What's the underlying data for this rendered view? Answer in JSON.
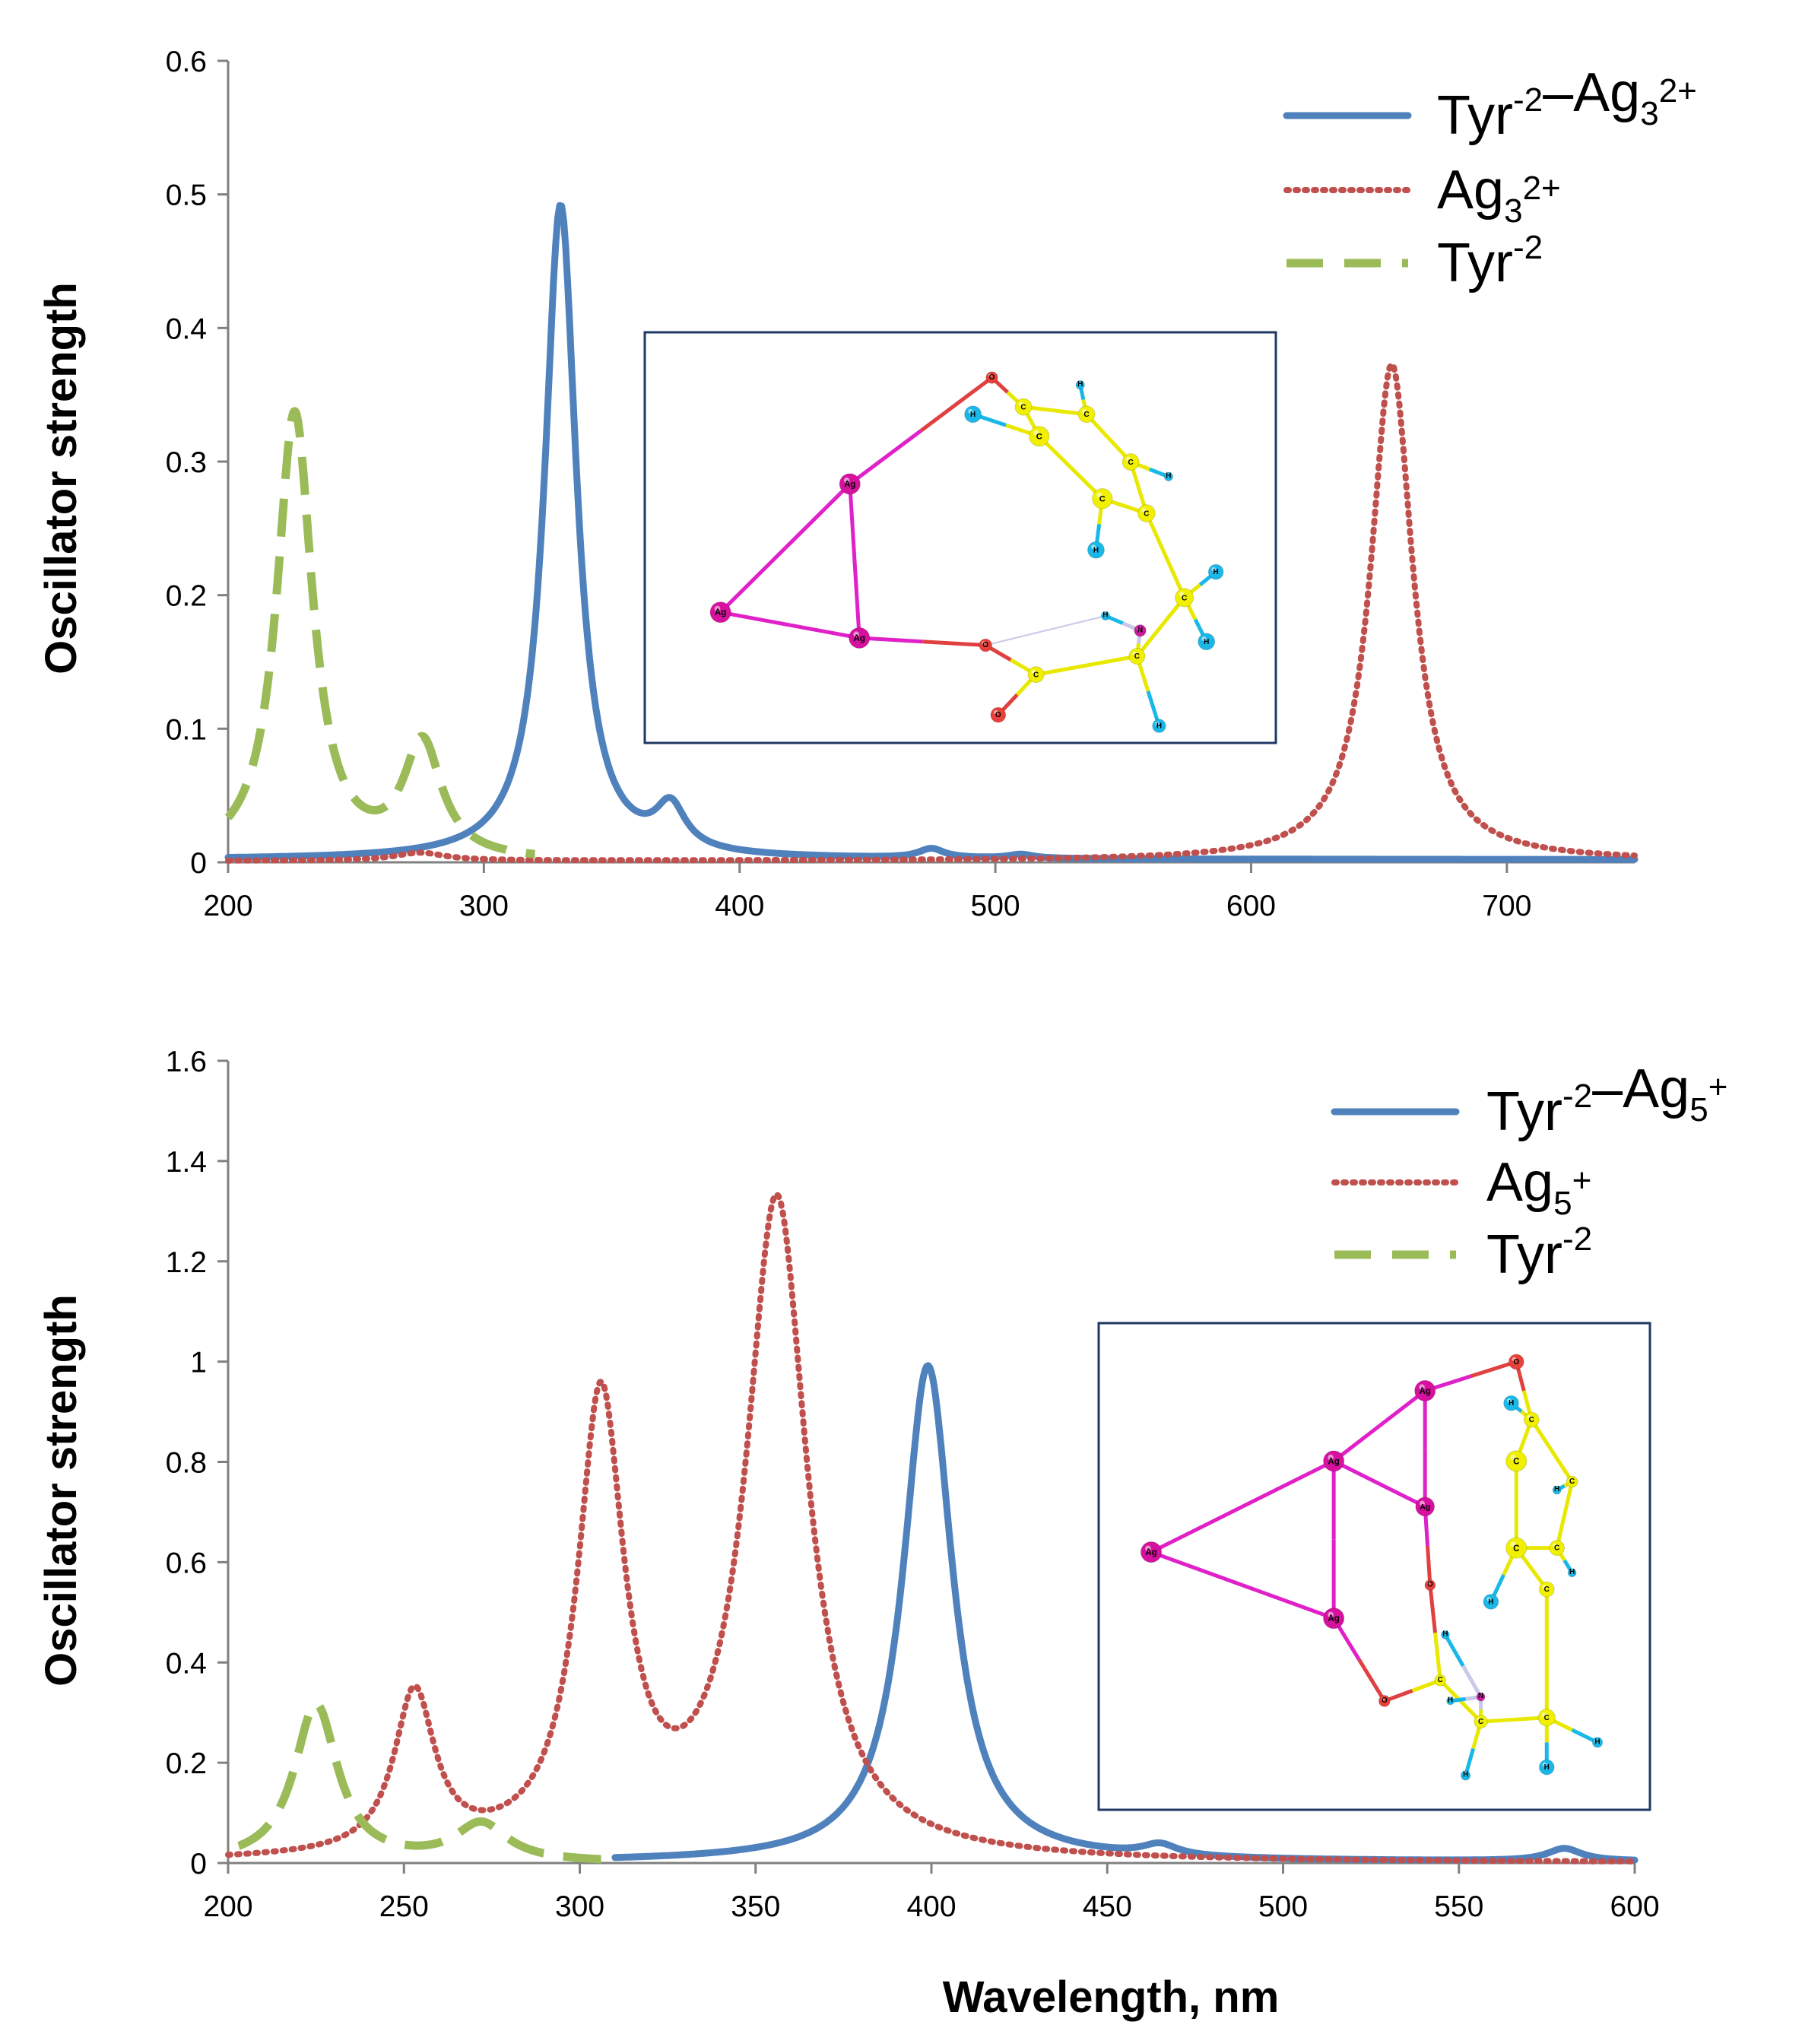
{
  "colors": {
    "complex": "#4f81bd",
    "cluster": "#c0504d",
    "tyrosine": "#9bbb59",
    "axis": "#808080",
    "inset_border": "#1f3864",
    "atom_C": "#f0f000",
    "atom_H": "#1ab8e8",
    "atom_O": "#e8403a",
    "atom_N": "#cc1aa0",
    "atom_Ag": "#d6119e",
    "bond_Ag": "#e020c8",
    "bond_C": "#e8e800",
    "bond_O": "#e04040",
    "bond_N": "#c8c8e8"
  },
  "shared": {
    "ylabel": "Oscillator strength",
    "xlabel": "Wavelength, nm"
  },
  "chart_data": [
    {
      "type": "line",
      "title": "",
      "xlabel": "",
      "ylabel": "Oscillator strength",
      "xlim": [
        200,
        750
      ],
      "ylim": [
        0,
        0.6
      ],
      "xticks": [
        "200",
        "300",
        "400",
        "500",
        "600",
        "700"
      ],
      "yticks": [
        "0",
        "0.1",
        "0.2",
        "0.3",
        "0.4",
        "0.5",
        "0.6"
      ],
      "grid": false,
      "legend_position": "top-right",
      "series": [
        {
          "name": "Tyr-2–Ag3 2+",
          "legend": {
            "base": "Tyr",
            "parts": [
              [
                "sup",
                "-2"
              ],
              [
                "text",
                "–Ag"
              ],
              [
                "sub",
                "3"
              ],
              [
                "sup",
                "2+"
              ]
            ]
          },
          "style": "solid",
          "peaks": [
            [
              330,
              0.49,
              7.5
            ],
            [
              373,
              0.032,
              7
            ],
            [
              475,
              0.007,
              6
            ],
            [
              510,
              0.003,
              6
            ]
          ],
          "baseline": 0.002
        },
        {
          "name": "Ag3 2+",
          "legend": {
            "base": "Ag",
            "parts": [
              [
                "sub",
                "3"
              ],
              [
                "sup",
                "2+"
              ]
            ]
          },
          "style": "dotted",
          "peaks": [
            [
              655,
              0.372,
              10
            ],
            [
              275,
              0.006,
              12
            ]
          ],
          "baseline": 0.001
        },
        {
          "name": "Tyr-2",
          "legend": {
            "base": "Tyr",
            "parts": [
              [
                "sup",
                "-2"
              ]
            ]
          },
          "style": "dashed",
          "x_range": [
            200,
            320
          ],
          "peaks": [
            [
              226,
              0.335,
              8.5
            ],
            [
              276,
              0.085,
              9
            ]
          ],
          "baseline": 0.0
        }
      ]
    },
    {
      "type": "line",
      "title": "",
      "xlabel": "Wavelength, nm",
      "ylabel": "Oscillator strength",
      "xlim": [
        200,
        600
      ],
      "ylim": [
        0,
        1.6
      ],
      "xticks": [
        "200",
        "250",
        "300",
        "350",
        "400",
        "450",
        "500",
        "550",
        "600"
      ],
      "yticks": [
        "0",
        "0.2",
        "0.4",
        "0.6",
        "0.8",
        "1",
        "1.2",
        "1.4",
        "1.6"
      ],
      "grid": false,
      "legend_position": "top-right",
      "series": [
        {
          "name": "Tyr-2–Ag5 +",
          "legend": {
            "base": "Tyr",
            "parts": [
              [
                "sup",
                "-2"
              ],
              [
                "text",
                "–Ag"
              ],
              [
                "sub",
                "5"
              ],
              [
                "sup",
                "+"
              ]
            ]
          },
          "style": "solid",
          "x_range": [
            310,
            600
          ],
          "peaks": [
            [
              399,
              0.99,
              8.5
            ],
            [
              465,
              0.022,
              6
            ],
            [
              580,
              0.025,
              6
            ]
          ],
          "baseline": 0.002
        },
        {
          "name": "Ag5 +",
          "legend": {
            "base": "Ag",
            "parts": [
              [
                "sub",
                "5"
              ],
              [
                "sup",
                "+"
              ]
            ]
          },
          "style": "dotted",
          "peaks": [
            [
              253,
              0.32,
              7
            ],
            [
              306,
              0.9,
              8
            ],
            [
              356,
              1.31,
              10.5
            ]
          ],
          "baseline": 0.0
        },
        {
          "name": "Tyr-2",
          "legend": {
            "base": "Tyr",
            "parts": [
              [
                "sup",
                "-2"
              ]
            ]
          },
          "style": "dashed",
          "x_range": [
            203,
            310
          ],
          "peaks": [
            [
              225,
              0.315,
              7.5
            ],
            [
              272,
              0.075,
              9
            ]
          ],
          "baseline": 0.0
        }
      ]
    }
  ],
  "insets": [
    {
      "name": "Tyr-2-Ag3 2+ structure",
      "atoms": [
        {
          "id": "Ag1",
          "el": "Ag",
          "label": "Ag",
          "p": [
            0.65,
            0.38
          ],
          "r": 0.062
        },
        {
          "id": "Ag2",
          "el": "Ag",
          "label": "Ag",
          "p": [
            0.24,
            0.73
          ],
          "r": 0.062
        },
        {
          "id": "Ag3",
          "el": "Ag",
          "label": "Ag",
          "p": [
            0.68,
            0.8
          ],
          "r": 0.062
        },
        {
          "id": "O1",
          "el": "O",
          "label": "O",
          "p": [
            1.1,
            0.09
          ],
          "r": 0.035
        },
        {
          "id": "Ca",
          "el": "C",
          "label": "C",
          "p": [
            1.2,
            0.17
          ],
          "r": 0.05
        },
        {
          "id": "Cb",
          "el": "C",
          "label": "C",
          "p": [
            1.25,
            0.25
          ],
          "r": 0.06
        },
        {
          "id": "Cc",
          "el": "C",
          "label": "C",
          "p": [
            1.4,
            0.19
          ],
          "r": 0.05
        },
        {
          "id": "Cd",
          "el": "C",
          "label": "C",
          "p": [
            1.54,
            0.32
          ],
          "r": 0.05
        },
        {
          "id": "Ce",
          "el": "C",
          "label": "C",
          "p": [
            1.45,
            0.42
          ],
          "r": 0.06
        },
        {
          "id": "Cf",
          "el": "C",
          "label": "C",
          "p": [
            1.59,
            0.46
          ],
          "r": 0.052
        },
        {
          "id": "Cg",
          "el": "C",
          "label": "C",
          "p": [
            1.71,
            0.69
          ],
          "r": 0.055
        },
        {
          "id": "Ch",
          "el": "C",
          "label": "C",
          "p": [
            1.56,
            0.85
          ],
          "r": 0.048
        },
        {
          "id": "Ci",
          "el": "C",
          "label": "C",
          "p": [
            1.24,
            0.9
          ],
          "r": 0.048
        },
        {
          "id": "O2",
          "el": "O",
          "label": "O",
          "p": [
            1.08,
            0.82
          ],
          "r": 0.038
        },
        {
          "id": "O3",
          "el": "O",
          "label": "O",
          "p": [
            1.12,
            1.01
          ],
          "r": 0.045
        },
        {
          "id": "N1",
          "el": "N",
          "label": "N",
          "p": [
            1.57,
            0.78
          ],
          "r": 0.035
        },
        {
          "id": "H1",
          "el": "H",
          "label": "H",
          "p": [
            1.04,
            0.19
          ],
          "r": 0.05
        },
        {
          "id": "H2",
          "el": "H",
          "label": "H",
          "p": [
            1.38,
            0.11
          ],
          "r": 0.026
        },
        {
          "id": "H3",
          "el": "H",
          "label": "H",
          "p": [
            1.66,
            0.36
          ],
          "r": 0.026
        },
        {
          "id": "H4",
          "el": "H",
          "label": "H",
          "p": [
            1.43,
            0.56
          ],
          "r": 0.05
        },
        {
          "id": "H5",
          "el": "H",
          "label": "H",
          "p": [
            1.81,
            0.62
          ],
          "r": 0.045
        },
        {
          "id": "H6",
          "el": "H",
          "label": "H",
          "p": [
            1.78,
            0.81
          ],
          "r": 0.05
        },
        {
          "id": "H7",
          "el": "H",
          "label": "H",
          "p": [
            1.63,
            1.04
          ],
          "r": 0.04
        },
        {
          "id": "H8",
          "el": "H",
          "label": "H",
          "p": [
            1.46,
            0.74
          ],
          "r": 0.025
        }
      ],
      "bonds": [
        [
          "Ag1",
          "Ag2"
        ],
        [
          "Ag1",
          "Ag3"
        ],
        [
          "Ag2",
          "Ag3"
        ],
        [
          "Ag1",
          "O1"
        ],
        [
          "Ag3",
          "O2"
        ],
        [
          "O1",
          "Ca"
        ],
        [
          "Ca",
          "Cc"
        ],
        [
          "Ca",
          "Cb"
        ],
        [
          "Cb",
          "H1"
        ],
        [
          "Cb",
          "Ce"
        ],
        [
          "Cc",
          "Cd"
        ],
        [
          "Cc",
          "H2"
        ],
        [
          "Cd",
          "Cf"
        ],
        [
          "Cd",
          "H3"
        ],
        [
          "Ce",
          "Cf"
        ],
        [
          "Ce",
          "H4"
        ],
        [
          "Cf",
          "Cg"
        ],
        [
          "Cg",
          "H5"
        ],
        [
          "Cg",
          "H6"
        ],
        [
          "Cg",
          "Ch"
        ],
        [
          "Ch",
          "N1"
        ],
        [
          "Ch",
          "H7"
        ],
        [
          "Ch",
          "Ci"
        ],
        [
          "Ci",
          "O2"
        ],
        [
          "Ci",
          "O3"
        ],
        [
          "N1",
          "H8"
        ],
        [
          "O2",
          "H8"
        ]
      ]
    },
    {
      "name": "Tyr-2-Ag5 + structure",
      "atoms": [
        {
          "id": "Ag1",
          "el": "Ag",
          "label": "Ag",
          "p": [
            0.6,
            0.14
          ],
          "r": 0.055
        },
        {
          "id": "Ag2",
          "el": "Ag",
          "label": "Ag",
          "p": [
            0.42,
            0.31
          ],
          "r": 0.055
        },
        {
          "id": "Ag3",
          "el": "Ag",
          "label": "Ag",
          "p": [
            0.06,
            0.53
          ],
          "r": 0.055
        },
        {
          "id": "Ag4",
          "el": "Ag",
          "label": "Ag",
          "p": [
            0.6,
            0.42
          ],
          "r": 0.05
        },
        {
          "id": "Ag5",
          "el": "Ag",
          "label": "Ag",
          "p": [
            0.42,
            0.69
          ],
          "r": 0.055
        },
        {
          "id": "O1",
          "el": "O",
          "label": "O",
          "p": [
            0.78,
            0.07
          ],
          "r": 0.04
        },
        {
          "id": "O2",
          "el": "O",
          "label": "O",
          "p": [
            0.61,
            0.61
          ],
          "r": 0.028
        },
        {
          "id": "O3",
          "el": "O",
          "label": "O",
          "p": [
            0.52,
            0.89
          ],
          "r": 0.03
        },
        {
          "id": "Ca",
          "el": "C",
          "label": "C",
          "p": [
            0.81,
            0.21
          ],
          "r": 0.04
        },
        {
          "id": "Cb",
          "el": "C",
          "label": "C",
          "p": [
            0.78,
            0.31
          ],
          "r": 0.055
        },
        {
          "id": "Cc",
          "el": "C",
          "label": "C",
          "p": [
            0.89,
            0.36
          ],
          "r": 0.03
        },
        {
          "id": "Cd",
          "el": "C",
          "label": "C",
          "p": [
            0.78,
            0.52
          ],
          "r": 0.055
        },
        {
          "id": "Ce",
          "el": "C",
          "label": "C",
          "p": [
            0.86,
            0.52
          ],
          "r": 0.04
        },
        {
          "id": "Cf",
          "el": "C",
          "label": "C",
          "p": [
            0.84,
            0.62
          ],
          "r": 0.04
        },
        {
          "id": "Cg",
          "el": "C",
          "label": "C",
          "p": [
            0.63,
            0.84
          ],
          "r": 0.03
        },
        {
          "id": "Ch",
          "el": "C",
          "label": "C",
          "p": [
            0.71,
            0.94
          ],
          "r": 0.035
        },
        {
          "id": "Ci",
          "el": "C",
          "label": "C",
          "p": [
            0.84,
            0.93
          ],
          "r": 0.045
        },
        {
          "id": "N1",
          "el": "N",
          "label": "N",
          "p": [
            0.71,
            0.88
          ],
          "r": 0.022
        },
        {
          "id": "H1",
          "el": "H",
          "label": "H",
          "p": [
            0.77,
            0.17
          ],
          "r": 0.04
        },
        {
          "id": "H2",
          "el": "H",
          "label": "H",
          "p": [
            0.86,
            0.38
          ],
          "r": 0.022
        },
        {
          "id": "H3",
          "el": "H",
          "label": "H",
          "p": [
            0.89,
            0.58
          ],
          "r": 0.022
        },
        {
          "id": "H4",
          "el": "H",
          "label": "H",
          "p": [
            0.73,
            0.65
          ],
          "r": 0.04
        },
        {
          "id": "H5",
          "el": "H",
          "label": "H",
          "p": [
            0.64,
            0.73
          ],
          "r": 0.022
        },
        {
          "id": "H6",
          "el": "H",
          "label": "H",
          "p": [
            0.94,
            0.99
          ],
          "r": 0.027
        },
        {
          "id": "H7",
          "el": "H",
          "label": "H",
          "p": [
            0.84,
            1.05
          ],
          "r": 0.04
        },
        {
          "id": "H8",
          "el": "H",
          "label": "H",
          "p": [
            0.68,
            1.07
          ],
          "r": 0.025
        },
        {
          "id": "H9",
          "el": "H",
          "label": "H",
          "p": [
            0.65,
            0.89
          ],
          "r": 0.02
        }
      ],
      "bonds": [
        [
          "Ag1",
          "Ag2"
        ],
        [
          "Ag1",
          "Ag4"
        ],
        [
          "Ag2",
          "Ag3"
        ],
        [
          "Ag2",
          "Ag4"
        ],
        [
          "Ag2",
          "Ag5"
        ],
        [
          "Ag3",
          "Ag5"
        ],
        [
          "Ag5",
          "O3"
        ],
        [
          "Ag4",
          "O2"
        ],
        [
          "Ag1",
          "O1"
        ],
        [
          "O1",
          "Ca"
        ],
        [
          "Ca",
          "H1"
        ],
        [
          "Ca",
          "Cc"
        ],
        [
          "Ca",
          "Cb"
        ],
        [
          "Cb",
          "Cd"
        ],
        [
          "Cc",
          "H2"
        ],
        [
          "Cc",
          "Ce"
        ],
        [
          "Cd",
          "Ce"
        ],
        [
          "Cd",
          "Cf"
        ],
        [
          "Ce",
          "H3"
        ],
        [
          "Cd",
          "H4"
        ],
        [
          "Cf",
          "Ci"
        ],
        [
          "Cg",
          "O3"
        ],
        [
          "Cg",
          "O2"
        ],
        [
          "Cg",
          "Ch"
        ],
        [
          "Ch",
          "N1"
        ],
        [
          "Ch",
          "Ci"
        ],
        [
          "Ch",
          "H8"
        ],
        [
          "Ci",
          "H6"
        ],
        [
          "Ci",
          "H7"
        ],
        [
          "N1",
          "H5"
        ],
        [
          "N1",
          "H9"
        ]
      ]
    }
  ]
}
